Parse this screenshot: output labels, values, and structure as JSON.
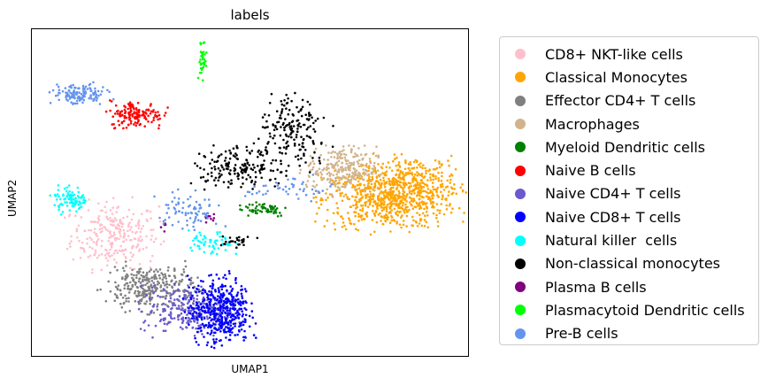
{
  "chart_data": {
    "type": "scatter",
    "title": "labels",
    "xlabel": "UMAP1",
    "ylabel": "UMAP2",
    "xticks": false,
    "yticks": false,
    "grid": false,
    "legend": "outside-right",
    "xlim": [
      0,
      10
    ],
    "ylim": [
      0,
      10
    ],
    "series": [
      {
        "name": "CD8+ NKT-like cells",
        "color": "#ffc0cb",
        "clusters": [
          {
            "x": 1.9,
            "y": 3.7,
            "sx": 0.5,
            "sy": 0.5,
            "n": 260
          }
        ]
      },
      {
        "name": "Classical Monocytes",
        "color": "#ffa500",
        "clusters": [
          {
            "x": 8.2,
            "y": 4.8,
            "sx": 0.75,
            "sy": 0.45,
            "n": 650
          },
          {
            "x": 8.7,
            "y": 5.4,
            "sx": 0.55,
            "sy": 0.35,
            "n": 220
          }
        ]
      },
      {
        "name": "Effector CD4+ T cells",
        "color": "#808080",
        "clusters": [
          {
            "x": 2.7,
            "y": 2.1,
            "sx": 0.5,
            "sy": 0.35,
            "n": 300
          }
        ]
      },
      {
        "name": "Macrophages",
        "color": "#d2b48c",
        "clusters": [
          {
            "x": 7.1,
            "y": 5.7,
            "sx": 0.4,
            "sy": 0.35,
            "n": 260
          }
        ]
      },
      {
        "name": "Myeloid Dendritic cells",
        "color": "#008000",
        "clusters": [
          {
            "x": 5.3,
            "y": 4.5,
            "sx": 0.3,
            "sy": 0.12,
            "n": 55
          }
        ]
      },
      {
        "name": "Naive B cells",
        "color": "#ff0000",
        "clusters": [
          {
            "x": 2.4,
            "y": 7.4,
            "sx": 0.3,
            "sy": 0.2,
            "n": 150
          }
        ]
      },
      {
        "name": "Naive CD4+ T cells",
        "color": "#6a5acd",
        "clusters": [
          {
            "x": 3.6,
            "y": 1.4,
            "sx": 0.55,
            "sy": 0.35,
            "n": 260
          }
        ]
      },
      {
        "name": "Naive CD8+ T cells",
        "color": "#0000ff",
        "clusters": [
          {
            "x": 4.3,
            "y": 1.4,
            "sx": 0.35,
            "sy": 0.5,
            "n": 450
          }
        ]
      },
      {
        "name": "Natural killer  cells",
        "color": "#00ffff",
        "clusters": [
          {
            "x": 0.9,
            "y": 4.8,
            "sx": 0.2,
            "sy": 0.2,
            "n": 90
          },
          {
            "x": 4.1,
            "y": 3.4,
            "sx": 0.25,
            "sy": 0.2,
            "n": 60
          }
        ]
      },
      {
        "name": "Non-classical monocytes",
        "color": "#000000",
        "clusters": [
          {
            "x": 6.0,
            "y": 6.8,
            "sx": 0.4,
            "sy": 0.6,
            "n": 180
          },
          {
            "x": 4.7,
            "y": 5.8,
            "sx": 0.5,
            "sy": 0.3,
            "n": 170
          },
          {
            "x": 4.7,
            "y": 3.5,
            "sx": 0.2,
            "sy": 0.08,
            "n": 25
          }
        ]
      },
      {
        "name": "Plasma B cells",
        "color": "#800080",
        "clusters": [
          {
            "x": 4.1,
            "y": 4.2,
            "sx": 0.08,
            "sy": 0.08,
            "n": 10
          },
          {
            "x": 3.0,
            "y": 4.0,
            "sx": 0.08,
            "sy": 0.08,
            "n": 5
          }
        ]
      },
      {
        "name": "Plasmacytoid Dendritic cells",
        "color": "#00ff00",
        "clusters": [
          {
            "x": 3.9,
            "y": 9.1,
            "sx": 0.06,
            "sy": 0.3,
            "n": 35
          }
        ]
      },
      {
        "name": "Pre-B cells",
        "color": "#6495ed",
        "clusters": [
          {
            "x": 1.1,
            "y": 8.0,
            "sx": 0.3,
            "sy": 0.16,
            "n": 130
          },
          {
            "x": 3.6,
            "y": 4.4,
            "sx": 0.35,
            "sy": 0.3,
            "n": 80
          },
          {
            "x": 5.9,
            "y": 5.1,
            "sx": 0.5,
            "sy": 0.2,
            "n": 45
          }
        ]
      }
    ]
  }
}
